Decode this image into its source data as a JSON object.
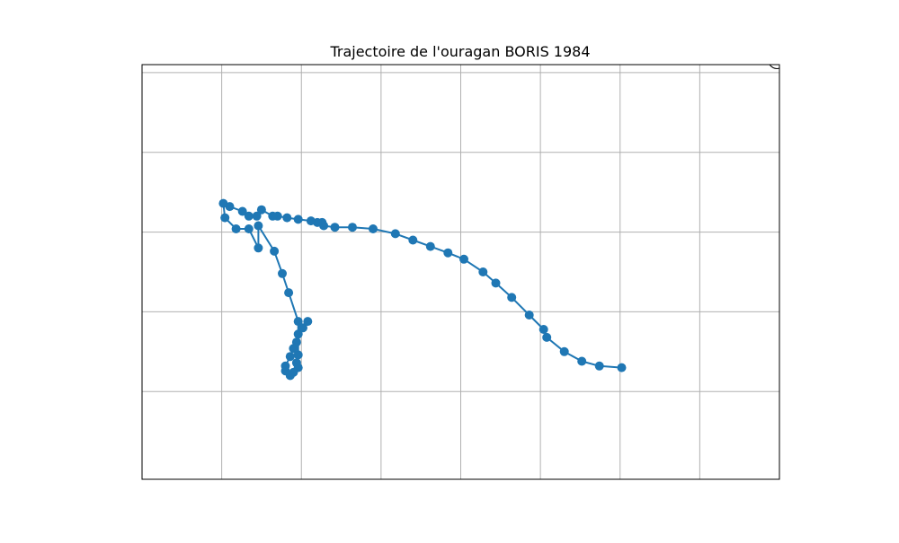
{
  "chart_data": {
    "type": "line",
    "title": "Trajectoire de l'ouragan BORIS 1984",
    "xlabel": "",
    "ylabel": "",
    "grid": true,
    "xlim": [
      -152.0,
      -112.0
    ],
    "ylim": [
      5.5,
      31.5
    ],
    "xgrid": [
      -147,
      -142,
      -137,
      -132,
      -127,
      -122,
      -117
    ],
    "ygrid": [
      11,
      16,
      21,
      26,
      31
    ],
    "colors": {
      "track": "#1f77b4",
      "grid": "#b0b0b0",
      "frame": "#000000"
    },
    "series": [
      {
        "marker": "circle",
        "x": [
          -121.9,
          -123.3,
          -124.4,
          -125.5,
          -126.6,
          -126.8,
          -127.7,
          -128.8,
          -129.8,
          -130.6,
          -131.8,
          -132.8,
          -133.9,
          -135.0,
          -136.1,
          -137.5,
          -138.8,
          -139.9,
          -140.6,
          -140.7,
          -141.0,
          -141.4,
          -142.2,
          -142.9,
          -143.5,
          -143.8,
          -144.5,
          -144.8,
          -145.3,
          -145.7,
          -146.5,
          -146.9,
          -146.8,
          -146.1,
          -145.3,
          -144.7,
          -144.7,
          -143.7,
          -143.2,
          -142.8,
          -142.2,
          -142.2,
          -142.3,
          -142.2,
          -142.5,
          -142.7,
          -143.0,
          -143.0,
          -142.7,
          -142.5,
          -142.3,
          -142.2,
          -141.9,
          -141.6
        ],
        "y": [
          12.5,
          12.6,
          12.9,
          13.5,
          14.4,
          14.9,
          15.8,
          16.9,
          17.8,
          18.5,
          19.3,
          19.7,
          20.1,
          20.5,
          20.9,
          21.2,
          21.3,
          21.3,
          21.4,
          21.6,
          21.6,
          21.7,
          21.8,
          21.9,
          22.0,
          22.0,
          22.4,
          22.0,
          22.0,
          22.3,
          22.6,
          22.8,
          21.9,
          21.2,
          21.2,
          20.0,
          21.4,
          19.8,
          18.4,
          17.2,
          15.4,
          13.3,
          12.8,
          12.5,
          12.2,
          12.0,
          12.3,
          12.6,
          13.2,
          13.7,
          14.1,
          14.6,
          15.0,
          15.4
        ]
      }
    ]
  }
}
